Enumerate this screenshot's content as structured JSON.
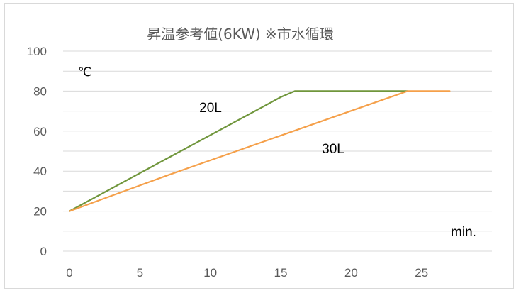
{
  "chart_data": {
    "type": "line",
    "title": "昇温参考値(6KW) ※市水循環",
    "xlabel": "min.",
    "ylabel": "℃",
    "xlim": [
      0,
      30
    ],
    "ylim": [
      0,
      100
    ],
    "x_ticks": [
      "0",
      "5",
      "10",
      "15",
      "20",
      "25"
    ],
    "y_ticks": [
      "0",
      "20",
      "40",
      "60",
      "80",
      "100"
    ],
    "grid": true,
    "series": [
      {
        "name": "20L",
        "color": "#70963c",
        "points": [
          [
            0,
            20
          ],
          [
            15,
            77
          ],
          [
            16,
            80
          ],
          [
            24,
            80
          ]
        ]
      },
      {
        "name": "30L",
        "color": "#f5a04a",
        "points": [
          [
            0,
            20
          ],
          [
            7,
            38
          ],
          [
            24,
            80
          ],
          [
            27,
            80
          ]
        ]
      }
    ]
  }
}
